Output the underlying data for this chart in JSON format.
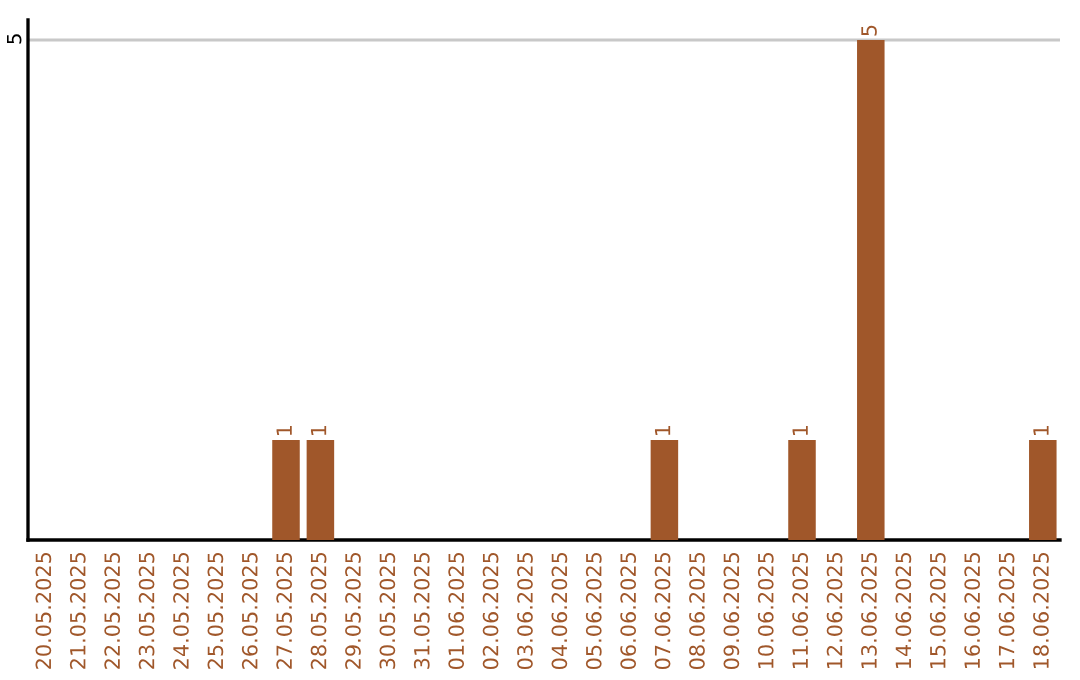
{
  "chart_data": {
    "type": "bar",
    "categories": [
      "20.05.2025",
      "21.05.2025",
      "22.05.2025",
      "23.05.2025",
      "24.05.2025",
      "25.05.2025",
      "26.05.2025",
      "27.05.2025",
      "28.05.2025",
      "29.05.2025",
      "30.05.2025",
      "31.05.2025",
      "01.06.2025",
      "02.06.2025",
      "03.06.2025",
      "04.06.2025",
      "05.06.2025",
      "06.06.2025",
      "07.06.2025",
      "08.06.2025",
      "09.06.2025",
      "10.06.2025",
      "11.06.2025",
      "12.06.2025",
      "13.06.2025",
      "14.06.2025",
      "15.06.2025",
      "16.06.2025",
      "17.06.2025",
      "18.06.2025"
    ],
    "values": [
      0,
      0,
      0,
      0,
      0,
      0,
      0,
      1,
      1,
      0,
      0,
      0,
      0,
      0,
      0,
      0,
      0,
      0,
      1,
      0,
      0,
      0,
      1,
      0,
      5,
      0,
      0,
      0,
      0,
      1
    ],
    "value_labels": [
      null,
      null,
      null,
      null,
      null,
      null,
      null,
      "1",
      "1",
      null,
      null,
      null,
      null,
      null,
      null,
      null,
      null,
      null,
      "1",
      null,
      null,
      null,
      "1",
      null,
      "5",
      null,
      null,
      null,
      null,
      "1"
    ],
    "color": "#a0572a",
    "ylim": [
      0,
      5.2
    ],
    "yticks": [
      5
    ],
    "grid": "y",
    "legend": false
  }
}
